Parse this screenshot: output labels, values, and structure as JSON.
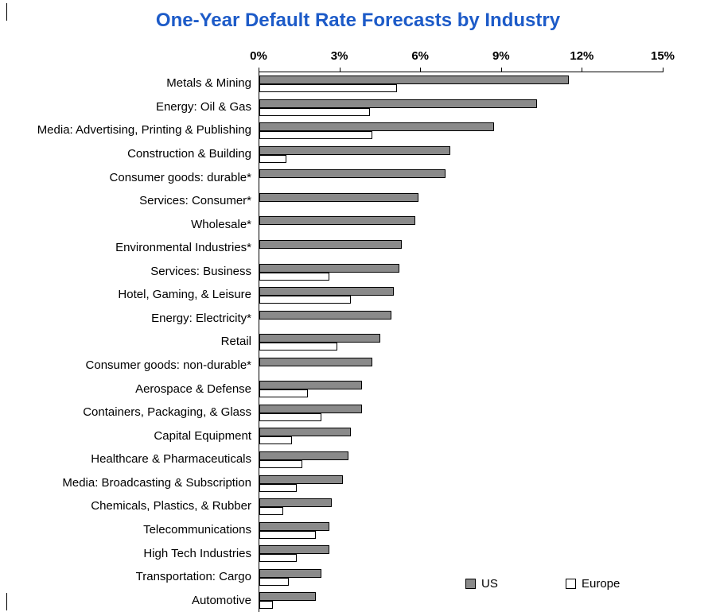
{
  "colors": {
    "title": "#1d5bc8",
    "us_bar": "#8a8a8a",
    "europe_bar": "#ffffff",
    "axis": "#000000"
  },
  "chart_data": {
    "type": "bar",
    "orientation": "horizontal",
    "title": "One-Year Default Rate Forecasts by Industry",
    "x_axis": {
      "position": "top",
      "min": 0,
      "max": 15,
      "ticks": [
        "0%",
        "3%",
        "6%",
        "9%",
        "12%",
        "15%"
      ],
      "unit": "%"
    },
    "grid": "off",
    "legend_position": "bottom-right-inside",
    "categories": [
      "Metals & Mining",
      "Energy: Oil & Gas",
      "Media: Advertising, Printing & Publishing",
      "Construction & Building",
      "Consumer goods: durable*",
      "Services: Consumer*",
      "Wholesale*",
      "Environmental Industries*",
      "Services: Business",
      "Hotel, Gaming, & Leisure",
      "Energy: Electricity*",
      "Retail",
      "Consumer goods: non-durable*",
      "Aerospace & Defense",
      "Containers, Packaging, & Glass",
      "Capital Equipment",
      "Healthcare & Pharmaceuticals",
      "Media: Broadcasting & Subscription",
      "Chemicals, Plastics, & Rubber",
      "Telecommunications",
      "High Tech Industries",
      "Transportation: Cargo",
      "Automotive"
    ],
    "series": [
      {
        "name": "US",
        "color": "#8a8a8a",
        "values": [
          11.5,
          10.3,
          8.7,
          7.1,
          6.9,
          5.9,
          5.8,
          5.3,
          5.2,
          5.0,
          4.9,
          4.5,
          4.2,
          3.8,
          3.8,
          3.4,
          3.3,
          3.1,
          2.7,
          2.6,
          2.6,
          2.3,
          2.1
        ]
      },
      {
        "name": "Europe",
        "color": "#ffffff",
        "values": [
          5.1,
          4.1,
          4.2,
          1.0,
          null,
          null,
          null,
          null,
          2.6,
          3.4,
          null,
          2.9,
          null,
          1.8,
          2.3,
          1.2,
          1.6,
          1.4,
          0.9,
          2.1,
          1.4,
          1.1,
          0.5
        ]
      }
    ]
  }
}
